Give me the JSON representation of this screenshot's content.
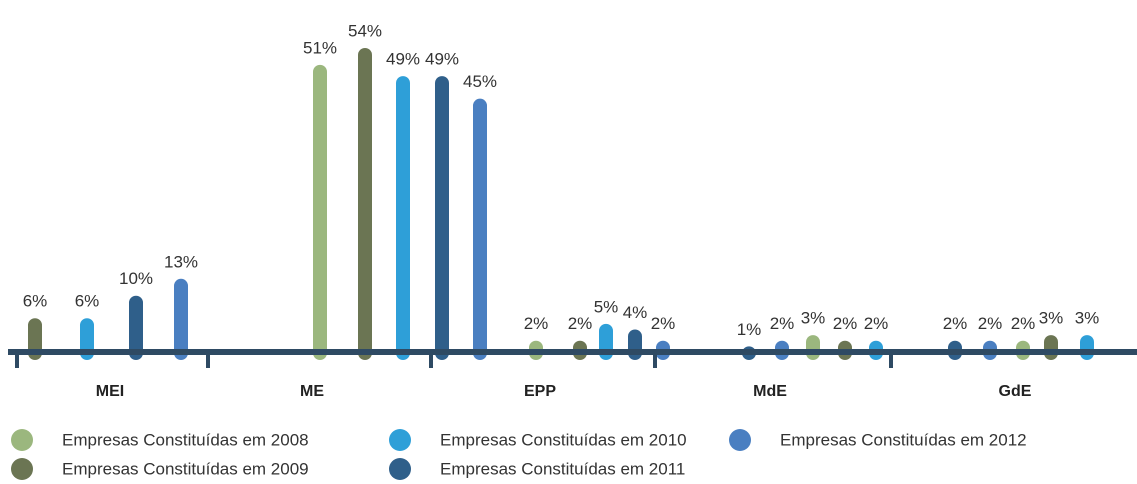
{
  "chart_data": {
    "type": "bar",
    "categories": [
      "MEI",
      "ME",
      "EPP",
      "MdE",
      "GdE"
    ],
    "series": [
      {
        "name": "Empresas Constituídas em 2008",
        "color": "#9bb77e",
        "values": [
          null,
          51,
          2,
          3,
          2
        ],
        "value_labels": [
          null,
          "51%",
          "2%",
          "3%",
          "2%"
        ]
      },
      {
        "name": "Empresas Constituídas em 2009",
        "color": "#6b7553",
        "values": [
          6,
          54,
          2,
          2,
          3
        ],
        "value_labels": [
          "6%",
          "54%",
          "2%",
          "2%",
          "3%"
        ]
      },
      {
        "name": "Empresas Constituídas em 2010",
        "color": "#2e9fd8",
        "values": [
          6,
          49,
          5,
          2,
          3
        ],
        "value_labels": [
          "6%",
          "49%",
          "5%",
          "2%",
          "3%"
        ]
      },
      {
        "name": "Empresas Constituídas em 2011",
        "color": "#2f5f8a",
        "values": [
          10,
          49,
          4,
          1,
          2
        ],
        "value_labels": [
          "10%",
          "49%",
          "4%",
          "1%",
          "2%"
        ]
      },
      {
        "name": "Empresas Constituídas em 2012",
        "color": "#4a7fc1",
        "values": [
          13,
          45,
          2,
          2,
          2
        ],
        "value_labels": [
          "13%",
          "45%",
          "2%",
          "2%",
          "2%"
        ]
      }
    ]
  }
}
